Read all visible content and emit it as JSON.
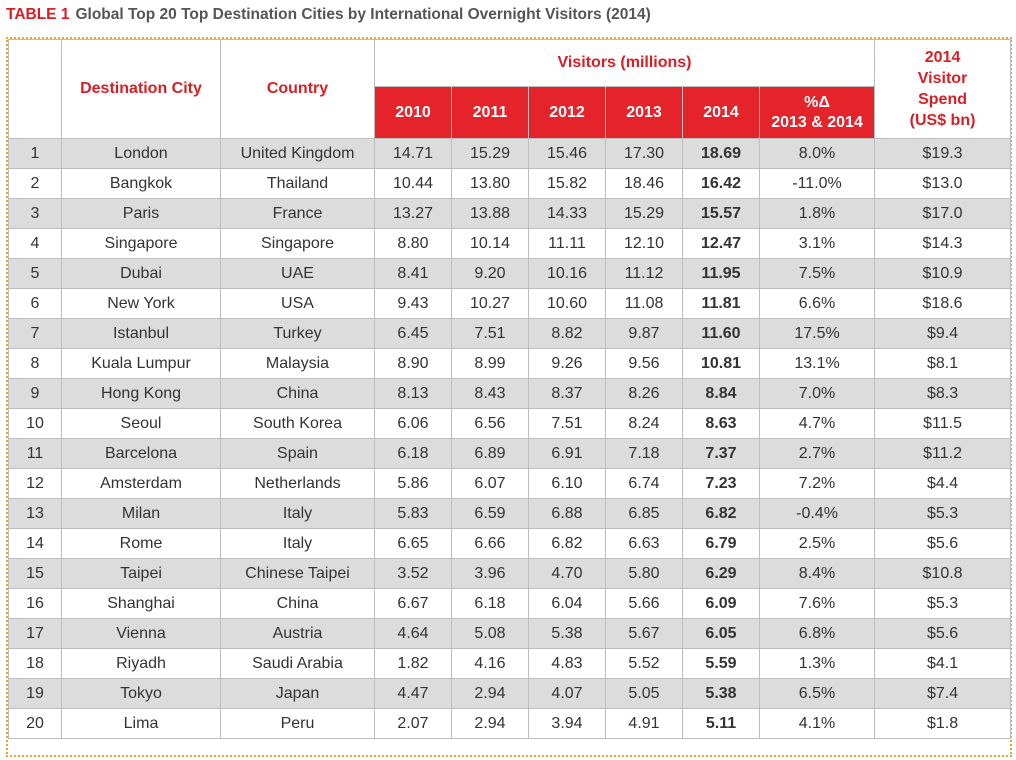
{
  "caption": {
    "label": "TABLE 1",
    "title": "Global Top 20 Top Destination Cities by International Overnight Visitors (2014)"
  },
  "chart_data": {
    "type": "table",
    "title": "Global Top 20 Top Destination Cities by International Overnight Visitors (2014)",
    "header": {
      "city": "Destination City",
      "country": "Country",
      "visitors_group": "Visitors (millions)",
      "years": [
        "2010",
        "2011",
        "2012",
        "2013",
        "2014"
      ],
      "pct_change_line1": "%Δ",
      "pct_change_line2": "2013 & 2014",
      "spend_line1": "2014",
      "spend_line2": "Visitor",
      "spend_line3": "Spend",
      "spend_line4": "(US$ bn)"
    },
    "rows": [
      {
        "rank": "1",
        "city": "London",
        "country": "United Kingdom",
        "v2010": "14.71",
        "v2011": "15.29",
        "v2012": "15.46",
        "v2013": "17.30",
        "v2014": "18.69",
        "pct": "8.0%",
        "spend": "$19.3"
      },
      {
        "rank": "2",
        "city": "Bangkok",
        "country": "Thailand",
        "v2010": "10.44",
        "v2011": "13.80",
        "v2012": "15.82",
        "v2013": "18.46",
        "v2014": "16.42",
        "pct": "-11.0%",
        "spend": "$13.0"
      },
      {
        "rank": "3",
        "city": "Paris",
        "country": "France",
        "v2010": "13.27",
        "v2011": "13.88",
        "v2012": "14.33",
        "v2013": "15.29",
        "v2014": "15.57",
        "pct": "1.8%",
        "spend": "$17.0"
      },
      {
        "rank": "4",
        "city": "Singapore",
        "country": "Singapore",
        "v2010": "8.80",
        "v2011": "10.14",
        "v2012": "11.11",
        "v2013": "12.10",
        "v2014": "12.47",
        "pct": "3.1%",
        "spend": "$14.3"
      },
      {
        "rank": "5",
        "city": "Dubai",
        "country": "UAE",
        "v2010": "8.41",
        "v2011": "9.20",
        "v2012": "10.16",
        "v2013": "11.12",
        "v2014": "11.95",
        "pct": "7.5%",
        "spend": "$10.9"
      },
      {
        "rank": "6",
        "city": "New York",
        "country": "USA",
        "v2010": "9.43",
        "v2011": "10.27",
        "v2012": "10.60",
        "v2013": "11.08",
        "v2014": "11.81",
        "pct": "6.6%",
        "spend": "$18.6"
      },
      {
        "rank": "7",
        "city": "Istanbul",
        "country": "Turkey",
        "v2010": "6.45",
        "v2011": "7.51",
        "v2012": "8.82",
        "v2013": "9.87",
        "v2014": "11.60",
        "pct": "17.5%",
        "spend": "$9.4"
      },
      {
        "rank": "8",
        "city": "Kuala Lumpur",
        "country": "Malaysia",
        "v2010": "8.90",
        "v2011": "8.99",
        "v2012": "9.26",
        "v2013": "9.56",
        "v2014": "10.81",
        "pct": "13.1%",
        "spend": "$8.1"
      },
      {
        "rank": "9",
        "city": "Hong Kong",
        "country": "China",
        "v2010": "8.13",
        "v2011": "8.43",
        "v2012": "8.37",
        "v2013": "8.26",
        "v2014": "8.84",
        "pct": "7.0%",
        "spend": "$8.3"
      },
      {
        "rank": "10",
        "city": "Seoul",
        "country": "South Korea",
        "v2010": "6.06",
        "v2011": "6.56",
        "v2012": "7.51",
        "v2013": "8.24",
        "v2014": "8.63",
        "pct": "4.7%",
        "spend": "$11.5"
      },
      {
        "rank": "11",
        "city": "Barcelona",
        "country": "Spain",
        "v2010": "6.18",
        "v2011": "6.89",
        "v2012": "6.91",
        "v2013": "7.18",
        "v2014": "7.37",
        "pct": "2.7%",
        "spend": "$11.2"
      },
      {
        "rank": "12",
        "city": "Amsterdam",
        "country": "Netherlands",
        "v2010": "5.86",
        "v2011": "6.07",
        "v2012": "6.10",
        "v2013": "6.74",
        "v2014": "7.23",
        "pct": "7.2%",
        "spend": "$4.4"
      },
      {
        "rank": "13",
        "city": "Milan",
        "country": "Italy",
        "v2010": "5.83",
        "v2011": "6.59",
        "v2012": "6.88",
        "v2013": "6.85",
        "v2014": "6.82",
        "pct": "-0.4%",
        "spend": "$5.3"
      },
      {
        "rank": "14",
        "city": "Rome",
        "country": "Italy",
        "v2010": "6.65",
        "v2011": "6.66",
        "v2012": "6.82",
        "v2013": "6.63",
        "v2014": "6.79",
        "pct": "2.5%",
        "spend": "$5.6"
      },
      {
        "rank": "15",
        "city": "Taipei",
        "country": "Chinese Taipei",
        "v2010": "3.52",
        "v2011": "3.96",
        "v2012": "4.70",
        "v2013": "5.80",
        "v2014": "6.29",
        "pct": "8.4%",
        "spend": "$10.8"
      },
      {
        "rank": "16",
        "city": "Shanghai",
        "country": "China",
        "v2010": "6.67",
        "v2011": "6.18",
        "v2012": "6.04",
        "v2013": "5.66",
        "v2014": "6.09",
        "pct": "7.6%",
        "spend": "$5.3"
      },
      {
        "rank": "17",
        "city": "Vienna",
        "country": "Austria",
        "v2010": "4.64",
        "v2011": "5.08",
        "v2012": "5.38",
        "v2013": "5.67",
        "v2014": "6.05",
        "pct": "6.8%",
        "spend": "$5.6"
      },
      {
        "rank": "18",
        "city": "Riyadh",
        "country": "Saudi Arabia",
        "v2010": "1.82",
        "v2011": "4.16",
        "v2012": "4.83",
        "v2013": "5.52",
        "v2014": "5.59",
        "pct": "1.3%",
        "spend": "$4.1"
      },
      {
        "rank": "19",
        "city": "Tokyo",
        "country": "Japan",
        "v2010": "4.47",
        "v2011": "2.94",
        "v2012": "4.07",
        "v2013": "5.05",
        "v2014": "5.38",
        "pct": "6.5%",
        "spend": "$7.4"
      },
      {
        "rank": "20",
        "city": "Lima",
        "country": "Peru",
        "v2010": "2.07",
        "v2011": "2.94",
        "v2012": "3.94",
        "v2013": "4.91",
        "v2014": "5.11",
        "pct": "4.1%",
        "spend": "$1.8"
      }
    ]
  },
  "colors": {
    "accent_red": "#e5232b",
    "header_text_red": "#d71f25",
    "row_shade": "#dcdcdc",
    "frame_dots": "#e9a530"
  }
}
